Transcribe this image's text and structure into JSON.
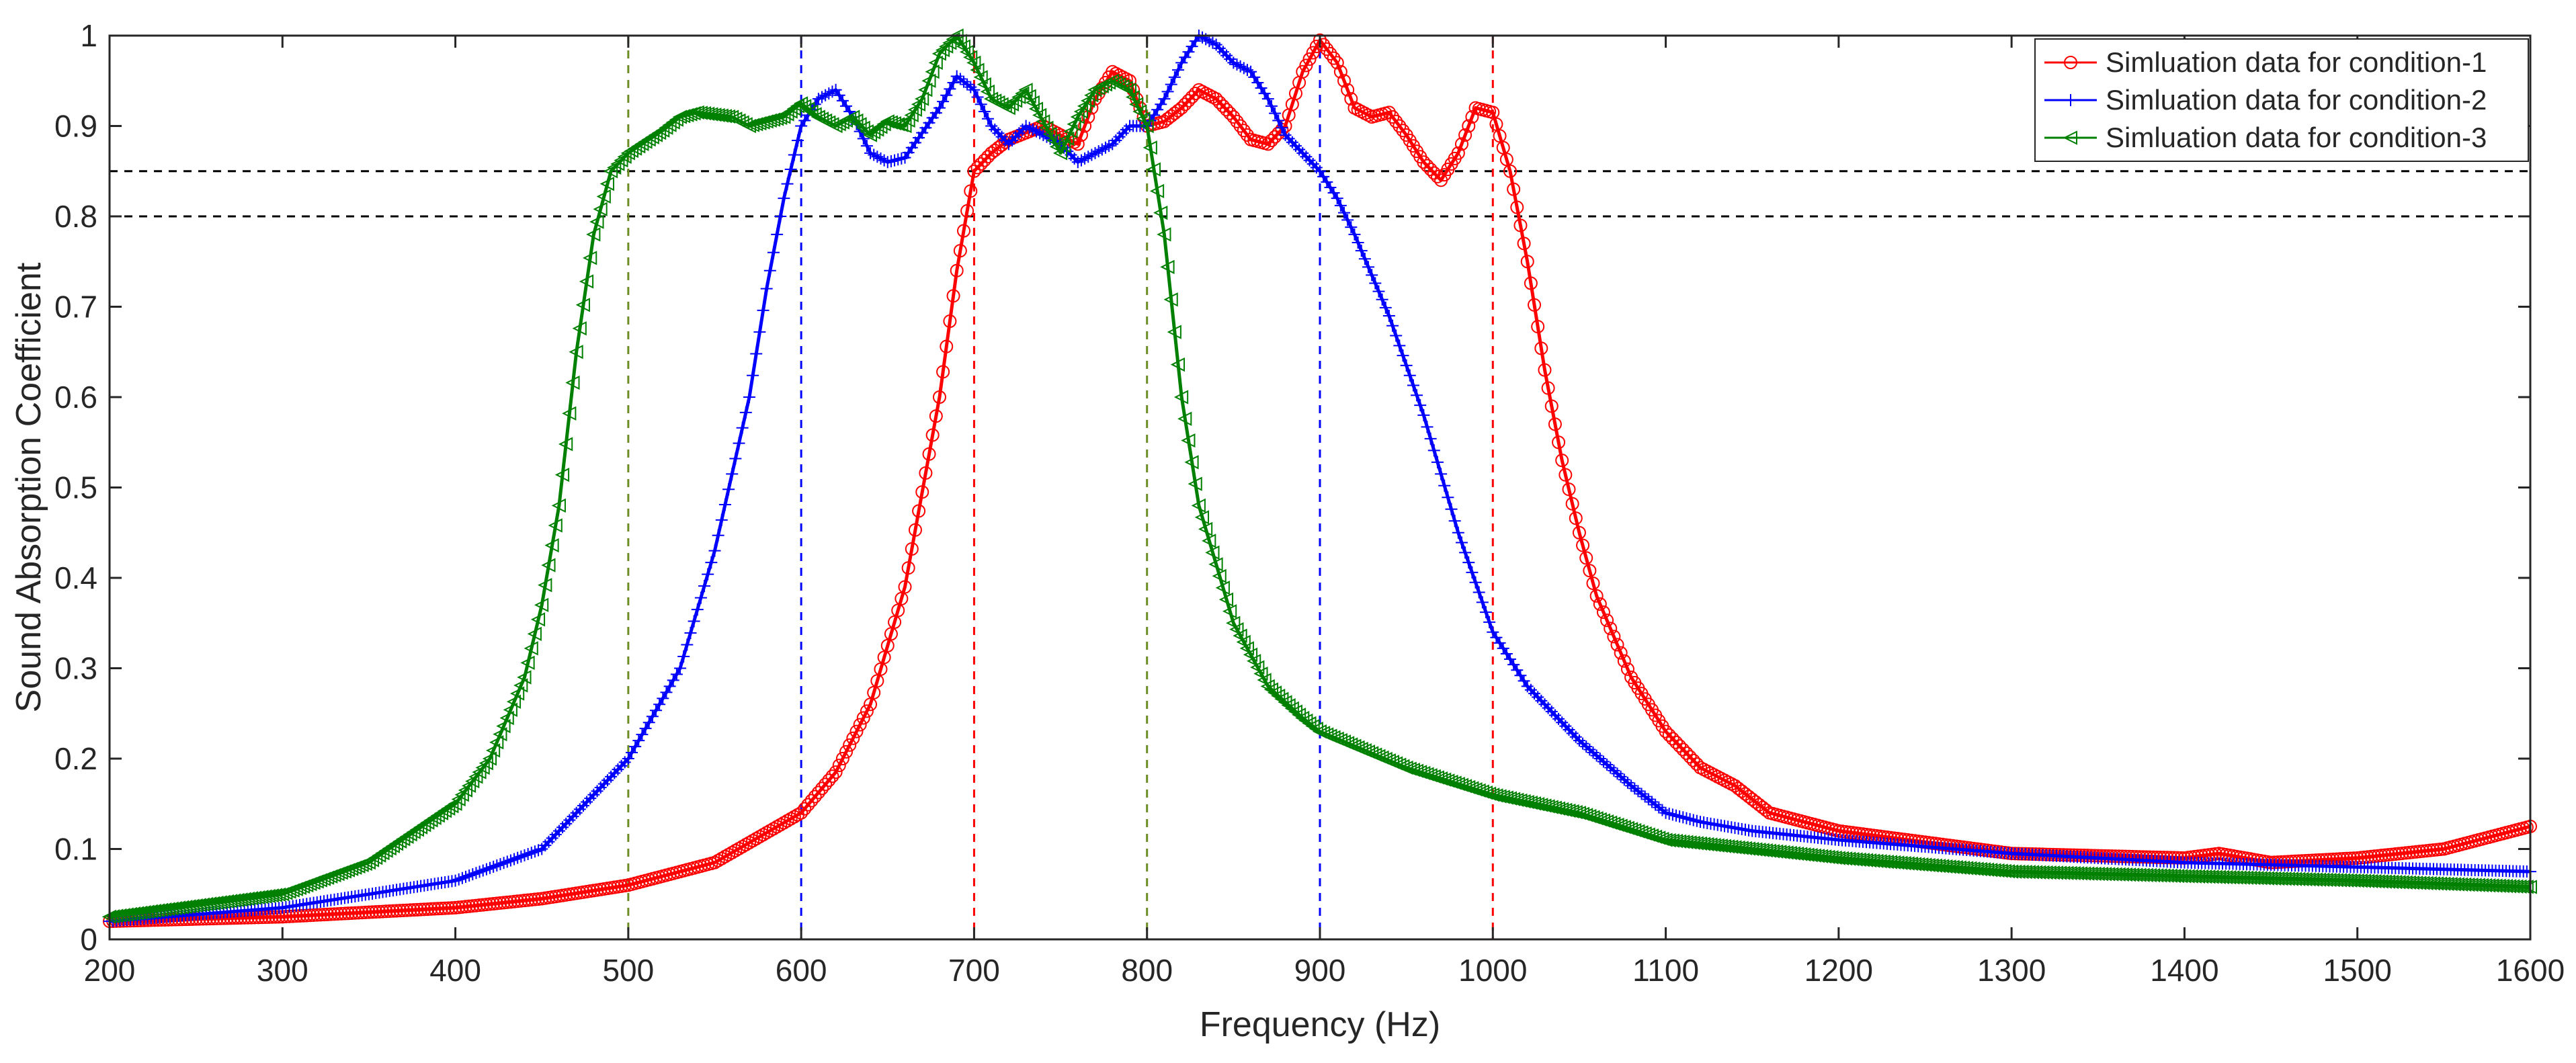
{
  "chart_data": {
    "type": "line",
    "title": "",
    "xlabel": "Frequency (Hz)",
    "ylabel": "Sound Absorption Coefficient",
    "xlim": [
      200,
      1600
    ],
    "ylim": [
      0,
      1
    ],
    "xticks": [
      200,
      300,
      400,
      500,
      600,
      700,
      800,
      900,
      1000,
      1100,
      1200,
      1300,
      1400,
      1500,
      1600
    ],
    "yticks": [
      0,
      0.1,
      0.2,
      0.3,
      0.4,
      0.5,
      0.6,
      0.7,
      0.8,
      0.9,
      1
    ],
    "ytick_labels": [
      "0",
      "0.1",
      "0.2",
      "0.3",
      "0.4",
      "0.5",
      "0.6",
      "0.7",
      "0.8",
      "0.9",
      "1"
    ],
    "grid": false,
    "legend_position": "top-right",
    "reference_lines": {
      "horizontal": [
        {
          "y": 0.85,
          "color": "#000000",
          "style": "dashed"
        },
        {
          "y": 0.8,
          "color": "#000000",
          "style": "dashed"
        }
      ],
      "vertical": [
        {
          "x": 500,
          "color": "#6b8e23",
          "style": "dashed"
        },
        {
          "x": 600,
          "color": "#0000ff",
          "style": "dashed"
        },
        {
          "x": 700,
          "color": "#ff0000",
          "style": "dashed"
        },
        {
          "x": 800,
          "color": "#6b8e23",
          "style": "dashed"
        },
        {
          "x": 900,
          "color": "#0000ff",
          "style": "dashed"
        },
        {
          "x": 1000,
          "color": "#ff0000",
          "style": "dashed"
        }
      ]
    },
    "series": [
      {
        "name": "Simluation data for condition-1",
        "color": "#ff0000",
        "marker": "circle",
        "x": [
          200,
          300,
          400,
          450,
          500,
          550,
          600,
          620,
          640,
          660,
          680,
          690,
          700,
          710,
          720,
          740,
          760,
          770,
          780,
          790,
          800,
          810,
          820,
          830,
          840,
          850,
          860,
          870,
          880,
          890,
          900,
          910,
          920,
          930,
          940,
          950,
          960,
          970,
          980,
          990,
          1000,
          1010,
          1020,
          1030,
          1040,
          1050,
          1060,
          1080,
          1100,
          1120,
          1140,
          1150,
          1160,
          1200,
          1300,
          1400,
          1420,
          1450,
          1500,
          1550,
          1580,
          1600
        ],
        "y": [
          0.02,
          0.025,
          0.035,
          0.045,
          0.06,
          0.085,
          0.14,
          0.185,
          0.26,
          0.39,
          0.6,
          0.74,
          0.85,
          0.87,
          0.885,
          0.9,
          0.88,
          0.93,
          0.96,
          0.95,
          0.9,
          0.905,
          0.92,
          0.94,
          0.93,
          0.91,
          0.885,
          0.88,
          0.9,
          0.96,
          0.995,
          0.97,
          0.92,
          0.91,
          0.915,
          0.89,
          0.86,
          0.84,
          0.87,
          0.92,
          0.915,
          0.85,
          0.75,
          0.63,
          0.53,
          0.45,
          0.38,
          0.29,
          0.23,
          0.19,
          0.17,
          0.155,
          0.14,
          0.12,
          0.095,
          0.09,
          0.095,
          0.085,
          0.09,
          0.1,
          0.115,
          0.125
        ]
      },
      {
        "name": "Simluation data for condition-2",
        "color": "#0000ff",
        "marker": "plus",
        "x": [
          200,
          300,
          400,
          450,
          500,
          530,
          550,
          570,
          580,
          590,
          600,
          610,
          620,
          630,
          640,
          650,
          660,
          680,
          690,
          700,
          710,
          720,
          730,
          740,
          750,
          760,
          770,
          780,
          790,
          800,
          810,
          820,
          830,
          840,
          850,
          860,
          870,
          880,
          890,
          900,
          910,
          920,
          940,
          960,
          980,
          1000,
          1020,
          1050,
          1080,
          1100,
          1120,
          1150,
          1200,
          1300,
          1400,
          1500,
          1600
        ],
        "y": [
          0.02,
          0.035,
          0.065,
          0.1,
          0.2,
          0.3,
          0.43,
          0.6,
          0.72,
          0.82,
          0.9,
          0.93,
          0.94,
          0.91,
          0.87,
          0.86,
          0.865,
          0.92,
          0.955,
          0.94,
          0.9,
          0.88,
          0.9,
          0.89,
          0.88,
          0.86,
          0.87,
          0.88,
          0.9,
          0.9,
          0.93,
          0.97,
          1.0,
          0.99,
          0.97,
          0.96,
          0.93,
          0.89,
          0.87,
          0.85,
          0.82,
          0.78,
          0.69,
          0.58,
          0.45,
          0.34,
          0.28,
          0.22,
          0.17,
          0.14,
          0.13,
          0.12,
          0.11,
          0.095,
          0.085,
          0.08,
          0.075
        ]
      },
      {
        "name": "Simluation data for condition-3",
        "color": "#008000",
        "marker": "triangle-left",
        "x": [
          200,
          300,
          350,
          400,
          420,
          440,
          450,
          460,
          470,
          480,
          490,
          500,
          520,
          530,
          540,
          560,
          570,
          590,
          600,
          610,
          620,
          630,
          640,
          650,
          660,
          670,
          680,
          690,
          700,
          710,
          720,
          730,
          740,
          750,
          760,
          770,
          780,
          790,
          800,
          810,
          820,
          830,
          850,
          870,
          890,
          900,
          950,
          1000,
          1050,
          1100,
          1200,
          1300,
          1400,
          1500,
          1600
        ],
        "y": [
          0.025,
          0.05,
          0.085,
          0.15,
          0.2,
          0.29,
          0.37,
          0.48,
          0.65,
          0.78,
          0.85,
          0.87,
          0.895,
          0.91,
          0.915,
          0.91,
          0.9,
          0.91,
          0.925,
          0.91,
          0.9,
          0.91,
          0.89,
          0.905,
          0.9,
          0.93,
          0.98,
          1.0,
          0.97,
          0.93,
          0.92,
          0.94,
          0.905,
          0.87,
          0.91,
          0.94,
          0.95,
          0.94,
          0.9,
          0.78,
          0.6,
          0.48,
          0.35,
          0.28,
          0.245,
          0.23,
          0.19,
          0.16,
          0.14,
          0.11,
          0.09,
          0.075,
          0.07,
          0.065,
          0.058
        ]
      }
    ]
  }
}
